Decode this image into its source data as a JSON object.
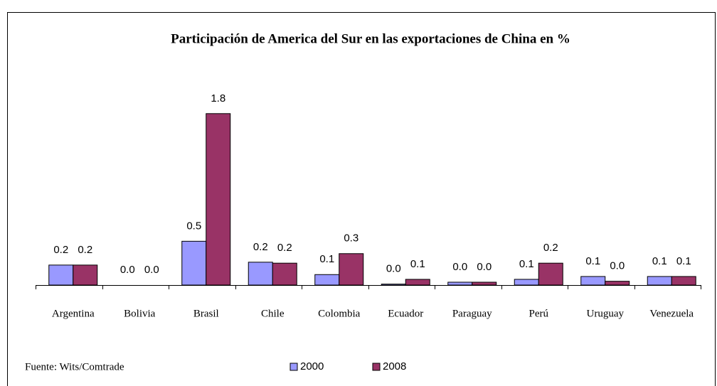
{
  "chart_data": {
    "type": "bar",
    "title": "Participación de America del Sur en las exportaciones de China en %",
    "source": "Fuente: Wits/Comtrade",
    "categories": [
      "Argentina",
      "Bolivia",
      "Brasil",
      "Chile",
      "Colombia",
      "Ecuador",
      "Paraguay",
      "Perú",
      "Uruguay",
      "Venezuela"
    ],
    "series": [
      {
        "name": "2000",
        "color": "#9999ff",
        "values": [
          0.21,
          0,
          0.46,
          0.24,
          0.11,
          0.01,
          0.03,
          0.06,
          0.09,
          0.09
        ],
        "value_labels": [
          "0.2",
          "0.0",
          "0.5",
          "0.2",
          "0.1",
          "0.0",
          "0.0",
          "0.1",
          "0.1",
          "0.1"
        ]
      },
      {
        "name": "2008",
        "color": "#993366",
        "values": [
          0.21,
          0,
          1.8,
          0.23,
          0.33,
          0.06,
          0.03,
          0.23,
          0.04,
          0.09
        ],
        "value_labels": [
          "0.2",
          "0.0",
          "1.8",
          "0.2",
          "0.3",
          "0.1",
          "0.0",
          "0.2",
          "0.0",
          "0.1"
        ]
      }
    ],
    "ylim": [
      0,
      2
    ]
  }
}
